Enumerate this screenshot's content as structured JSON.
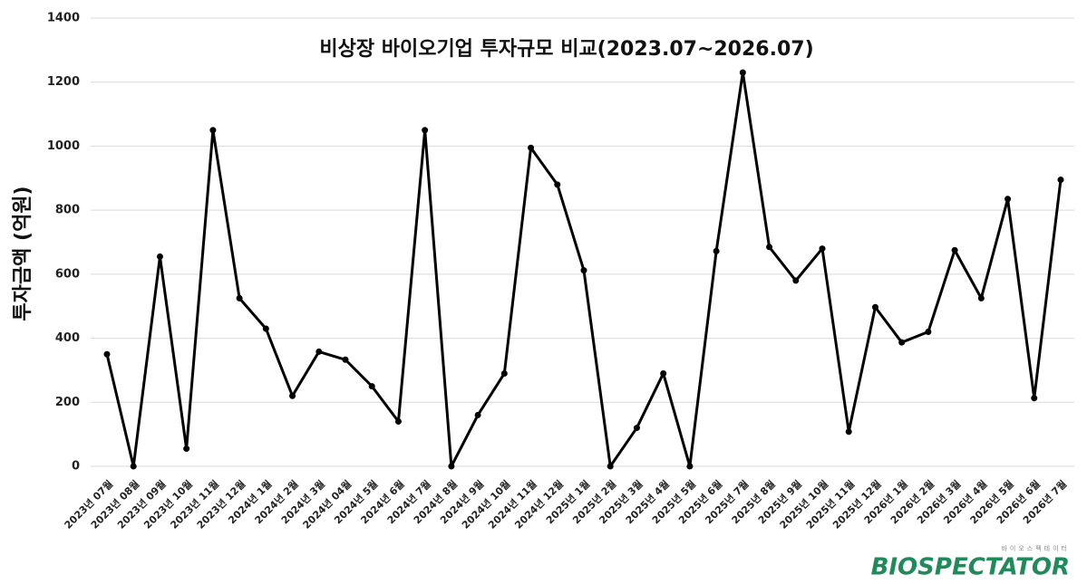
{
  "chart_data": {
    "type": "line",
    "title": "비상장 바이오기업 투자규모 비교(2023.07~2026.07)",
    "y_label": "투자금액 (억원)",
    "categories": [
      "2023년 07월",
      "2023년 08월",
      "2023년 09월",
      "2023년 10월",
      "2023년 11월",
      "2023년 12월",
      "2024년 1월",
      "2024년 2월",
      "2024년 3월",
      "2024년 04월",
      "2024년 5월",
      "2024년 6월",
      "2024년 7월",
      "2024년 8월",
      "2024년 9월",
      "2024년 10월",
      "2024년 11월",
      "2024년 12월",
      "2025년 1월",
      "2025년 2월",
      "2025년 3월",
      "2025년 4월",
      "2025년 5월",
      "2025년 6월",
      "2025년 7월",
      "2025년 8월",
      "2025년 9월",
      "2025년 10월",
      "2025년 11월",
      "2025년 12월",
      "2026년 1월",
      "2026년 2월",
      "2026년 3월",
      "2026년 4월",
      "2026년 5월",
      "2026년 6월",
      "2026년 7월"
    ],
    "values": [
      350,
      0,
      655,
      55,
      1050,
      525,
      430,
      220,
      358,
      333,
      250,
      140,
      1050,
      0,
      160,
      290,
      995,
      880,
      612,
      0,
      120,
      290,
      0,
      672,
      1230,
      685,
      580,
      680,
      108,
      497,
      387,
      420,
      675,
      525,
      835,
      213,
      895
    ],
    "color": "#000000",
    "ylim": [
      0,
      1400
    ],
    "yticks": [
      0,
      200,
      400,
      600,
      800,
      1000,
      1200,
      1400
    ],
    "grid": true
  },
  "logo": {
    "name": "BIOSPECTATOR",
    "subtitle": "바이오스펙테이터"
  }
}
